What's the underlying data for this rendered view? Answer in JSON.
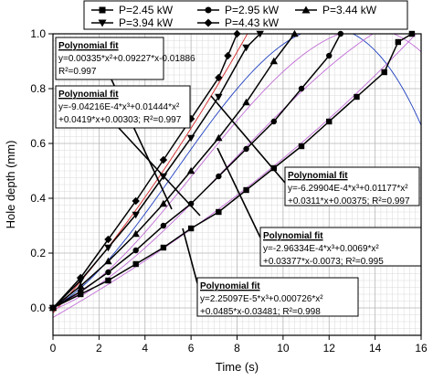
{
  "chart_data": {
    "type": "line",
    "xlabel": "Time (s)",
    "ylabel": "Hole depth (mm)",
    "xlim": [
      0,
      16
    ],
    "ylim": [
      -0.1,
      1.0
    ],
    "xticks": [
      "0",
      "2",
      "4",
      "6",
      "8",
      "10",
      "12",
      "14",
      "16"
    ],
    "yticks": [
      "0.0",
      "0.2",
      "0.4",
      "0.6",
      "0.8",
      "1.0"
    ],
    "grid": true,
    "legend_placement": "top",
    "series": [
      {
        "name": "P=2.45 kW",
        "marker": "square",
        "x": [
          0,
          1.2,
          2.4,
          3.6,
          4.8,
          6.0,
          7.2,
          8.4,
          9.6,
          10.8,
          12.0,
          13.2,
          14.4,
          15.0,
          15.6
        ],
        "y": [
          0.0,
          0.05,
          0.1,
          0.16,
          0.22,
          0.29,
          0.35,
          0.43,
          0.51,
          0.59,
          0.68,
          0.77,
          0.86,
          0.97,
          1.0
        ]
      },
      {
        "name": "P=2.95 kW",
        "marker": "circle",
        "x": [
          0,
          1.2,
          2.4,
          3.6,
          4.8,
          6.0,
          7.2,
          8.4,
          9.6,
          10.8,
          12.0,
          12.5
        ],
        "y": [
          0.0,
          0.06,
          0.13,
          0.21,
          0.3,
          0.38,
          0.48,
          0.58,
          0.68,
          0.8,
          0.92,
          1.0
        ]
      },
      {
        "name": "P=3.44 kW",
        "marker": "triangle-up",
        "x": [
          0,
          1.2,
          2.4,
          3.6,
          4.8,
          6.0,
          7.2,
          8.4,
          9.6,
          10.5
        ],
        "y": [
          0.0,
          0.08,
          0.17,
          0.27,
          0.38,
          0.5,
          0.62,
          0.75,
          0.9,
          1.0
        ]
      },
      {
        "name": "P=3.94 kW",
        "marker": "triangle-down",
        "x": [
          0,
          1.2,
          2.4,
          3.6,
          4.8,
          6.0,
          7.2,
          8.4,
          9.0
        ],
        "y": [
          0.0,
          0.1,
          0.22,
          0.34,
          0.48,
          0.62,
          0.77,
          0.95,
          1.0
        ]
      },
      {
        "name": "P=4.43 kW",
        "marker": "diamond",
        "x": [
          0,
          1.2,
          2.4,
          3.6,
          4.8,
          6.0,
          7.2,
          7.6,
          8.0
        ],
        "y": [
          0.0,
          0.11,
          0.25,
          0.39,
          0.54,
          0.69,
          0.84,
          0.92,
          1.0
        ]
      }
    ],
    "fit_coefficients": [
      {
        "series": "P=4.43 kW",
        "a3": 0,
        "a2": 0.00335,
        "a1": 0.09227,
        "a0": -0.01886,
        "color": "#d62728"
      },
      {
        "series": "P=3.94 kW",
        "a3": -0.000904216,
        "a2": 0.01444,
        "a1": 0.0419,
        "a0": 0.00303,
        "color": "#1f3fbf"
      },
      {
        "series": "P=3.44 kW",
        "a3": -0.000629904,
        "a2": 0.01177,
        "a1": 0.0311,
        "a0": 0.00375,
        "color": "#c06bd6"
      },
      {
        "series": "P=2.95 kW",
        "a3": -0.000296334,
        "a2": 0.0069,
        "a1": 0.03377,
        "a0": -0.0073,
        "color": "#c06bd6"
      },
      {
        "series": "P=2.45 kW",
        "a3": 2.25097e-05,
        "a2": 0.000726,
        "a1": 0.0485,
        "a0": -0.03481,
        "color": "#c06bd6"
      }
    ],
    "annotations": [
      {
        "title": "Polynomial fit",
        "lines": [
          "y=0.00335*x²+0.09227*x-0.01886",
          "R²=0.997"
        ]
      },
      {
        "title": "Polynomial fit",
        "lines": [
          "y=-9.04216E-4*x³+0.01444*x²",
          "+0.0419*x+0.00303; R²=0.997"
        ]
      },
      {
        "title": "Polynomial fit",
        "lines": [
          "y=-6.29904E-4*x³+0.01177*x²",
          "+0.0311*x+0.00375; R²=0.997"
        ]
      },
      {
        "title": "Polynomial fit",
        "lines": [
          "y=-2.96334E-4*x³+0.0069*x²",
          "+0.03377*x-0.0073; R²=0.995"
        ]
      },
      {
        "title": "Polynomial fit",
        "lines": [
          "y=2.25097E-5*x³+0.000726*x²",
          "+0.0485*x-0.03481; R²=0.998"
        ]
      }
    ]
  }
}
